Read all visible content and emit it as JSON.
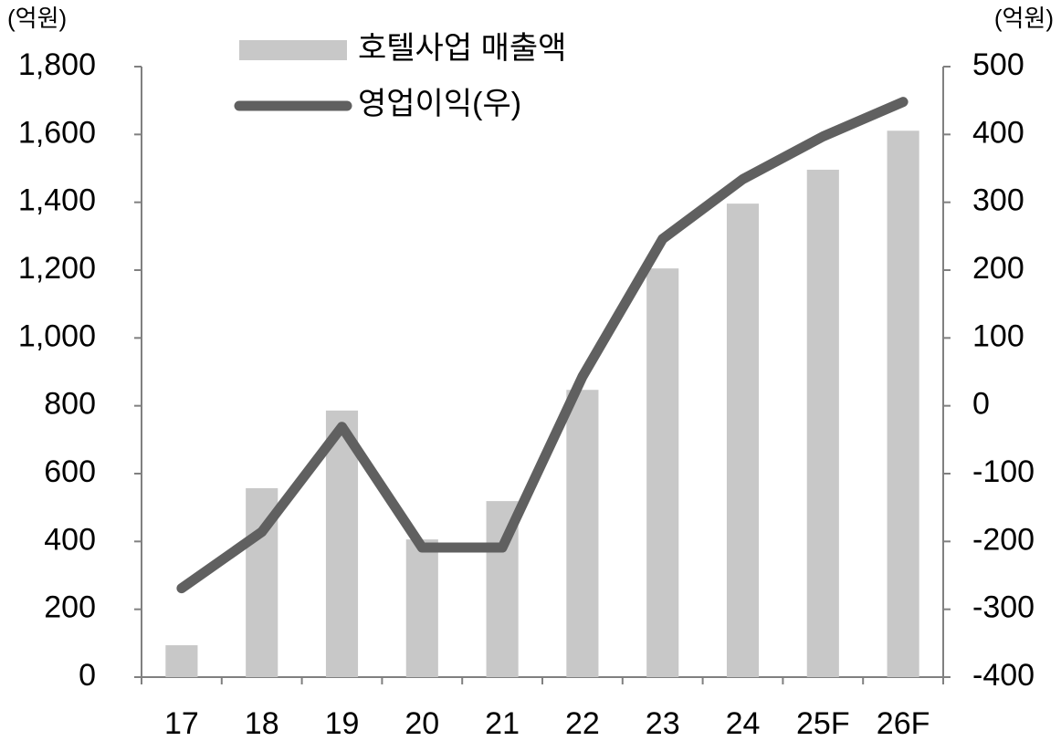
{
  "chart_data": {
    "type": "bar-line",
    "y_label": "(억원)",
    "y2_label": "(억원)",
    "categories": [
      "17",
      "18",
      "19",
      "20",
      "21",
      "22",
      "23",
      "24",
      "25F",
      "26F"
    ],
    "series": [
      {
        "name": "호텔사업 매출액",
        "type": "bar",
        "color": "#c8c8c8",
        "values": [
          94,
          557,
          786,
          406,
          519,
          847,
          1205,
          1396,
          1496,
          1611
        ]
      },
      {
        "name": "영업이익(우)",
        "type": "line",
        "axis": "y2",
        "color": "#606060",
        "values": [
          -269,
          -186,
          -31,
          -209,
          -209,
          43,
          246,
          334,
          397,
          448
        ]
      }
    ],
    "ylim": [
      0,
      1800
    ],
    "yticks": [
      0,
      200,
      400,
      600,
      800,
      {
        "value": 1000,
        "label": "1,000"
      },
      {
        "value": 1200,
        "label": "1,200"
      },
      {
        "value": 1400,
        "label": "1,400"
      },
      {
        "value": 1600,
        "label": "1,600"
      },
      {
        "value": 1800,
        "label": "1,800"
      }
    ],
    "y2lim": [
      -400,
      500
    ],
    "y2ticks": [
      -400,
      -300,
      -200,
      -100,
      0,
      100,
      200,
      300,
      400,
      500
    ],
    "grid": false
  }
}
